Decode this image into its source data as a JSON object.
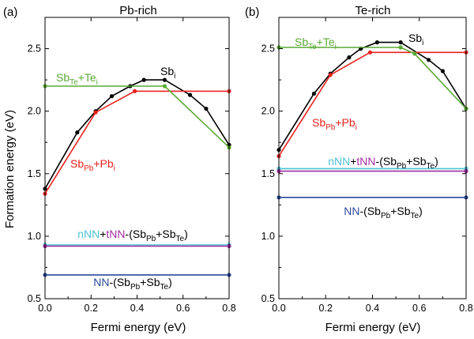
{
  "colors": {
    "black": "#000000",
    "red": "#e8231f",
    "green": "#5aaa32",
    "cyan": "#4cc3d4",
    "magenta": "#a22ea3",
    "blue": "#2a4a9a"
  },
  "ylabel": "Formation energy (eV)",
  "chart_data": [
    {
      "type": "line",
      "panel_label": "(a)",
      "title": "Pb-rich",
      "xlabel": "Fermi energy (eV)",
      "ylabel": "Formation energy (eV)",
      "xlim": [
        0.0,
        0.8
      ],
      "ylim": [
        0.5,
        2.75
      ],
      "xticks": [
        "0.0",
        "0.2",
        "0.4",
        "0.6",
        "0.8"
      ],
      "yticks": [
        "0.5",
        "1.0",
        "1.5",
        "2.0",
        "2.5"
      ],
      "series": [
        {
          "key": "sbi",
          "color": "#000000",
          "x": [
            0.0,
            0.14,
            0.22,
            0.29,
            0.37,
            0.43,
            0.52,
            0.63,
            0.7,
            0.8
          ],
          "y": [
            1.38,
            1.83,
            2.0,
            2.12,
            2.2,
            2.25,
            2.25,
            2.13,
            2.02,
            1.73
          ]
        },
        {
          "key": "sbpb_pbi",
          "color": "#e8231f",
          "x": [
            0.0,
            0.22,
            0.39,
            0.8
          ],
          "y": [
            1.34,
            1.99,
            2.16,
            2.16
          ]
        },
        {
          "key": "sbte_tei",
          "color": "#5aaa32",
          "x": [
            0.0,
            0.52,
            0.8
          ],
          "y": [
            2.2,
            2.2,
            1.71
          ]
        },
        {
          "key": "nnn",
          "color": "#4cc3d4",
          "x": [
            0.0,
            0.8
          ],
          "y": [
            0.93,
            0.93
          ]
        },
        {
          "key": "tnn",
          "color": "#a22ea3",
          "x": [
            0.0,
            0.8
          ],
          "y": [
            0.92,
            0.92
          ]
        },
        {
          "key": "nn",
          "color": "#2a4a9a",
          "x": [
            0.0,
            0.8
          ],
          "y": [
            0.69,
            0.69
          ]
        }
      ],
      "annotations": {
        "sbte_tei": {
          "parts": [
            {
              "t": "Sb",
              "c": "#5aaa32"
            },
            {
              "t": "Te",
              "c": "#5aaa32",
              "sub": true
            },
            {
              "t": "+Te",
              "c": "#5aaa32"
            },
            {
              "t": "i",
              "c": "#5aaa32",
              "sub": true
            }
          ]
        },
        "sbi": {
          "parts": [
            {
              "t": "Sb",
              "c": "#000000"
            },
            {
              "t": "i",
              "c": "#000000",
              "sub": true
            }
          ]
        },
        "sbpb_pbi": {
          "parts": [
            {
              "t": "Sb",
              "c": "#e8231f"
            },
            {
              "t": "Pb",
              "c": "#e8231f",
              "sub": true
            },
            {
              "t": "+Pb",
              "c": "#e8231f"
            },
            {
              "t": "i",
              "c": "#e8231f",
              "sub": true
            }
          ]
        },
        "nnn_tnn": {
          "parts": [
            {
              "t": "nNN",
              "c": "#4cc3d4"
            },
            {
              "t": "+",
              "c": "#000000"
            },
            {
              "t": "tNN",
              "c": "#a22ea3"
            },
            {
              "t": "-(Sb",
              "c": "#000000"
            },
            {
              "t": "Pb",
              "c": "#000000",
              "sub": true
            },
            {
              "t": "+Sb",
              "c": "#000000"
            },
            {
              "t": "Te",
              "c": "#000000",
              "sub": true
            },
            {
              "t": ")",
              "c": "#000000"
            }
          ]
        },
        "nn": {
          "parts": [
            {
              "t": "NN",
              "c": "#2a4a9a"
            },
            {
              "t": "-(Sb",
              "c": "#000000"
            },
            {
              "t": "Pb",
              "c": "#000000",
              "sub": true
            },
            {
              "t": "+Sb",
              "c": "#000000"
            },
            {
              "t": "Te",
              "c": "#000000",
              "sub": true
            },
            {
              "t": ")",
              "c": "#000000"
            }
          ]
        }
      }
    },
    {
      "type": "line",
      "panel_label": "(b)",
      "title": "Te-rich",
      "xlabel": "Fermi energy (eV)",
      "ylabel": "",
      "xlim": [
        0.0,
        0.8
      ],
      "ylim": [
        0.5,
        2.75
      ],
      "xticks": [
        "0.0",
        "0.2",
        "0.4",
        "0.6",
        "0.8"
      ],
      "yticks": [
        "0.5",
        "1.0",
        "1.5",
        "2.0",
        "2.5"
      ],
      "series": [
        {
          "key": "sbi",
          "color": "#000000",
          "x": [
            0.0,
            0.15,
            0.22,
            0.3,
            0.35,
            0.42,
            0.52,
            0.64,
            0.7,
            0.8
          ],
          "y": [
            1.69,
            2.14,
            2.3,
            2.43,
            2.5,
            2.55,
            2.55,
            2.41,
            2.32,
            2.02
          ]
        },
        {
          "key": "sbpb_pbi",
          "color": "#e8231f",
          "x": [
            0.0,
            0.22,
            0.39,
            0.8
          ],
          "y": [
            1.64,
            2.29,
            2.47,
            2.47
          ]
        },
        {
          "key": "sbte_tei",
          "color": "#5aaa32",
          "x": [
            0.0,
            0.52,
            0.58,
            0.8
          ],
          "y": [
            2.51,
            2.51,
            2.46,
            2.02
          ]
        },
        {
          "key": "nnn",
          "color": "#4cc3d4",
          "x": [
            0.0,
            0.8
          ],
          "y": [
            1.54,
            1.54
          ]
        },
        {
          "key": "tnn",
          "color": "#a22ea3",
          "x": [
            0.0,
            0.8
          ],
          "y": [
            1.52,
            1.52
          ]
        },
        {
          "key": "nn",
          "color": "#2a4a9a",
          "x": [
            0.0,
            0.8
          ],
          "y": [
            1.31,
            1.31
          ]
        }
      ],
      "annotations": {
        "sbte_tei": {
          "parts": [
            {
              "t": "Sb",
              "c": "#5aaa32"
            },
            {
              "t": "Te",
              "c": "#5aaa32",
              "sub": true
            },
            {
              "t": "+Te",
              "c": "#5aaa32"
            },
            {
              "t": "i",
              "c": "#5aaa32",
              "sub": true
            }
          ]
        },
        "sbi": {
          "parts": [
            {
              "t": "Sb",
              "c": "#000000"
            },
            {
              "t": "i",
              "c": "#000000",
              "sub": true
            }
          ]
        },
        "sbpb_pbi": {
          "parts": [
            {
              "t": "Sb",
              "c": "#e8231f"
            },
            {
              "t": "Pb",
              "c": "#e8231f",
              "sub": true
            },
            {
              "t": "+Pb",
              "c": "#e8231f"
            },
            {
              "t": "i",
              "c": "#e8231f",
              "sub": true
            }
          ]
        },
        "nnn_tnn": {
          "parts": [
            {
              "t": "nNN",
              "c": "#4cc3d4"
            },
            {
              "t": "+",
              "c": "#000000"
            },
            {
              "t": "tNN",
              "c": "#a22ea3"
            },
            {
              "t": "-(Sb",
              "c": "#000000"
            },
            {
              "t": "Pb",
              "c": "#000000",
              "sub": true
            },
            {
              "t": "+Sb",
              "c": "#000000"
            },
            {
              "t": "Te",
              "c": "#000000",
              "sub": true
            },
            {
              "t": ")",
              "c": "#000000"
            }
          ]
        },
        "nn": {
          "parts": [
            {
              "t": "NN",
              "c": "#2a4a9a"
            },
            {
              "t": "-(Sb",
              "c": "#000000"
            },
            {
              "t": "Pb",
              "c": "#000000",
              "sub": true
            },
            {
              "t": "+Sb",
              "c": "#000000"
            },
            {
              "t": "Te",
              "c": "#000000",
              "sub": true
            },
            {
              "t": ")",
              "c": "#000000"
            }
          ]
        }
      }
    }
  ]
}
